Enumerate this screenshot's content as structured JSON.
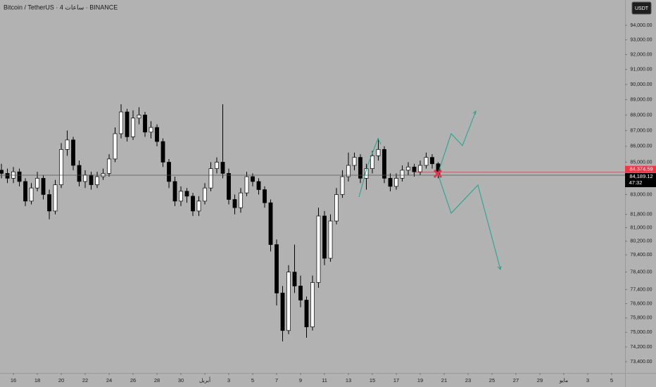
{
  "chart_data": {
    "type": "candlestick",
    "title": "Bitcoin / TetherUS · 4 ساعات · BINANCE",
    "currency": "USDT",
    "countdown": "47:32",
    "log_scale": true,
    "grid": false,
    "up_color": "#ffffff",
    "down_color": "#000000",
    "x": [
      -1,
      -0.5,
      0,
      0.5,
      1,
      1.5,
      2,
      2.5,
      3,
      3.5,
      4,
      4.5,
      5,
      5.5,
      6,
      6.5,
      7,
      7.5,
      8,
      8.5,
      9,
      9.5,
      10,
      10.5,
      11,
      11.5,
      12,
      12.5,
      13,
      13.5,
      14,
      14.5,
      15,
      15.5,
      16,
      16.5,
      17,
      17.5,
      18,
      18.5,
      19,
      19.5,
      20,
      20.5,
      21,
      21.5,
      22,
      22.5,
      23,
      23.5,
      24,
      24.5,
      25,
      25.5,
      26,
      26.5,
      27,
      27.5,
      28,
      28.5,
      29,
      29.5,
      30,
      30.5,
      31,
      31.5,
      32,
      32.5,
      33,
      33.5,
      34,
      34.5,
      35,
      35.5
    ],
    "open": [
      84500,
      84300,
      84000,
      84400,
      83800,
      82600,
      83400,
      84000,
      83000,
      82000,
      83600,
      85800,
      86400,
      84800,
      83800,
      84200,
      83600,
      84100,
      84300,
      85200,
      86800,
      88200,
      86600,
      87800,
      88000,
      86900,
      87200,
      86300,
      85000,
      83800,
      82600,
      83200,
      82900,
      82000,
      82600,
      83400,
      84600,
      85000,
      84300,
      82700,
      82200,
      83100,
      84100,
      83800,
      83300,
      82500,
      80000,
      77200,
      75100,
      78400,
      77600,
      76800,
      75300,
      77800,
      81700,
      79200,
      81400,
      83000,
      84100,
      84800,
      85300,
      84000,
      84600,
      85400,
      85800,
      84000,
      83500,
      84000,
      84500,
      84700,
      84400,
      84800,
      85300,
      84900
    ],
    "high": [
      84900,
      84600,
      84700,
      84600,
      84000,
      83700,
      84400,
      84200,
      83300,
      83900,
      86200,
      87000,
      86600,
      85100,
      84500,
      84400,
      84400,
      84600,
      85500,
      87200,
      88700,
      88400,
      88300,
      88500,
      88200,
      87600,
      87400,
      86500,
      85200,
      84100,
      83500,
      83400,
      83100,
      82900,
      83700,
      85000,
      85300,
      88700,
      84600,
      83000,
      83400,
      84400,
      84300,
      84000,
      83500,
      82700,
      80300,
      77600,
      78800,
      80000,
      78200,
      77000,
      78200,
      82200,
      82000,
      81800,
      83400,
      84500,
      85600,
      85600,
      85500,
      84900,
      85700,
      86500,
      86000,
      84300,
      84300,
      84800,
      85000,
      84900,
      85100,
      85600,
      85500,
      85000
    ],
    "low": [
      84000,
      83700,
      83700,
      83500,
      82300,
      82400,
      83200,
      82700,
      81500,
      81800,
      83400,
      85400,
      84500,
      83500,
      83400,
      83300,
      83400,
      83900,
      84100,
      85000,
      86500,
      86300,
      86400,
      87400,
      86600,
      86500,
      86000,
      84700,
      83400,
      82300,
      82300,
      82500,
      81700,
      81700,
      82400,
      83200,
      84300,
      84000,
      82400,
      81800,
      81900,
      82900,
      83500,
      83000,
      82200,
      79600,
      76500,
      74500,
      74900,
      77200,
      76400,
      74700,
      75100,
      77500,
      78800,
      79000,
      81200,
      82800,
      83800,
      84500,
      83700,
      83300,
      84300,
      85100,
      83700,
      83200,
      83300,
      83800,
      84200,
      84100,
      84200,
      84600,
      84600,
      84000
    ],
    "close": [
      84300,
      84000,
      84400,
      83800,
      82600,
      83400,
      84000,
      83000,
      82000,
      83600,
      85800,
      86400,
      84800,
      83800,
      84200,
      83600,
      84100,
      84300,
      85200,
      86800,
      88200,
      86600,
      87800,
      88000,
      86900,
      87200,
      86300,
      85000,
      83800,
      82600,
      83200,
      82900,
      82000,
      82600,
      83400,
      84600,
      85000,
      84300,
      82700,
      82200,
      83100,
      84100,
      83800,
      83300,
      82500,
      80000,
      77200,
      75100,
      78400,
      77600,
      76800,
      75300,
      77800,
      81700,
      79200,
      81400,
      83000,
      84100,
      84800,
      85300,
      84000,
      84600,
      85400,
      85800,
      84000,
      83500,
      84000,
      84500,
      84700,
      84400,
      84800,
      85300,
      84900,
      84189
    ],
    "xlim": [
      -1.12,
      51.12
    ],
    "xticks": [
      {
        "value": 0,
        "label": "16"
      },
      {
        "value": 2,
        "label": "18"
      },
      {
        "value": 4,
        "label": "20"
      },
      {
        "value": 6,
        "label": "22"
      },
      {
        "value": 8,
        "label": "24"
      },
      {
        "value": 10,
        "label": "26"
      },
      {
        "value": 12,
        "label": "28"
      },
      {
        "value": 14,
        "label": "30"
      },
      {
        "value": 16,
        "label": "أبريل"
      },
      {
        "value": 18,
        "label": "3"
      },
      {
        "value": 20,
        "label": "5"
      },
      {
        "value": 22,
        "label": "7"
      },
      {
        "value": 24,
        "label": "9"
      },
      {
        "value": 26,
        "label": "11"
      },
      {
        "value": 28,
        "label": "13"
      },
      {
        "value": 30,
        "label": "15"
      },
      {
        "value": 32,
        "label": "17"
      },
      {
        "value": 34,
        "label": "19"
      },
      {
        "value": 36,
        "label": "21"
      },
      {
        "value": 38,
        "label": "23"
      },
      {
        "value": 40,
        "label": "25"
      },
      {
        "value": 42,
        "label": "27"
      },
      {
        "value": 44,
        "label": "29"
      },
      {
        "value": 46,
        "label": "مايو"
      },
      {
        "value": 48,
        "label": "3"
      },
      {
        "value": 50,
        "label": "5"
      }
    ],
    "ylim": [
      72794,
      95768
    ],
    "yticks": [
      {
        "value": 94000,
        "label": "94,000.00"
      },
      {
        "value": 93000,
        "label": "93,000.00"
      },
      {
        "value": 92000,
        "label": "92,000.00"
      },
      {
        "value": 91000,
        "label": "91,000.00"
      },
      {
        "value": 90000,
        "label": "90,000.00"
      },
      {
        "value": 89000,
        "label": "89,000.00"
      },
      {
        "value": 88000,
        "label": "88,000.00"
      },
      {
        "value": 87000,
        "label": "87,000.00"
      },
      {
        "value": 86000,
        "label": "86,000.00"
      },
      {
        "value": 85000,
        "label": "85,000.00"
      },
      {
        "value": 83000,
        "label": "83,000.00"
      },
      {
        "value": 81800,
        "label": "81,800.00"
      },
      {
        "value": 81000,
        "label": "81,000.00"
      },
      {
        "value": 80200,
        "label": "80,200.00"
      },
      {
        "value": 79400,
        "label": "79,400.00"
      },
      {
        "value": 78400,
        "label": "78,400.00"
      },
      {
        "value": 77400,
        "label": "77,400.00"
      },
      {
        "value": 76600,
        "label": "76,600.00"
      },
      {
        "value": 75800,
        "label": "75,800.00"
      },
      {
        "value": 75000,
        "label": "75,000.00"
      },
      {
        "value": 74200,
        "label": "74,200.00"
      },
      {
        "value": 73400,
        "label": "73,400.00"
      }
    ],
    "price_lines": [
      {
        "value": 84374.59,
        "label": "84,374.59",
        "color": "#f23645"
      },
      {
        "value": 84189.12,
        "label": "84,189.12",
        "color": "#000000"
      }
    ]
  }
}
